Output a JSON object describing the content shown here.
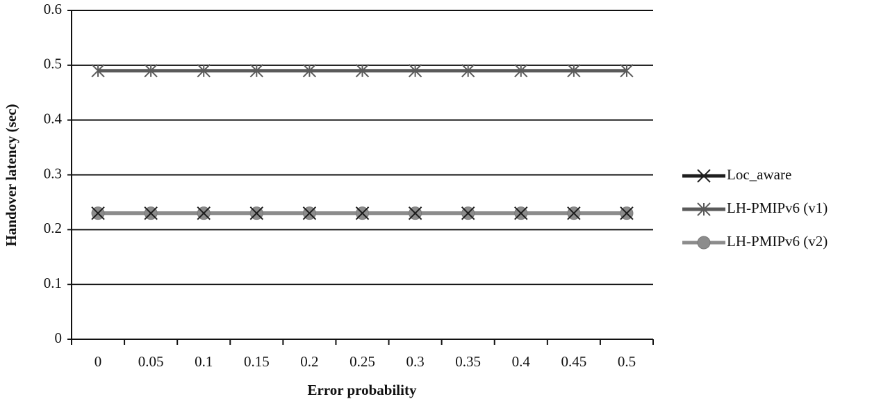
{
  "chart_data": {
    "type": "line",
    "x_label": "Error probability",
    "y_label": "Handover latency (sec)",
    "categories": [
      "0",
      "0.05",
      "0.1",
      "0.15",
      "0.2",
      "0.25",
      "0.3",
      "0.35",
      "0.4",
      "0.45",
      "0.5"
    ],
    "series": [
      {
        "name": "Loc_aware",
        "color": "#1e1e1e",
        "marker": "x",
        "values": [
          0.23,
          0.23,
          0.23,
          0.23,
          0.23,
          0.23,
          0.23,
          0.23,
          0.23,
          0.23,
          0.23
        ]
      },
      {
        "name": "LH-PMIPv6 (v1)",
        "color": "#5a5a5a",
        "marker": "star",
        "values": [
          0.49,
          0.49,
          0.49,
          0.49,
          0.49,
          0.49,
          0.49,
          0.49,
          0.49,
          0.49,
          0.49
        ]
      },
      {
        "name": "LH-PMIPv6 (v2)",
        "color": "#8c8c8c",
        "marker": "circle",
        "values": [
          0.23,
          0.23,
          0.23,
          0.23,
          0.23,
          0.23,
          0.23,
          0.23,
          0.23,
          0.23,
          0.23
        ]
      }
    ],
    "ylim": [
      0,
      0.6
    ],
    "yticks": [
      0,
      0.1,
      0.2,
      0.3,
      0.4,
      0.5,
      0.6
    ],
    "grid": true,
    "legend": "right"
  }
}
